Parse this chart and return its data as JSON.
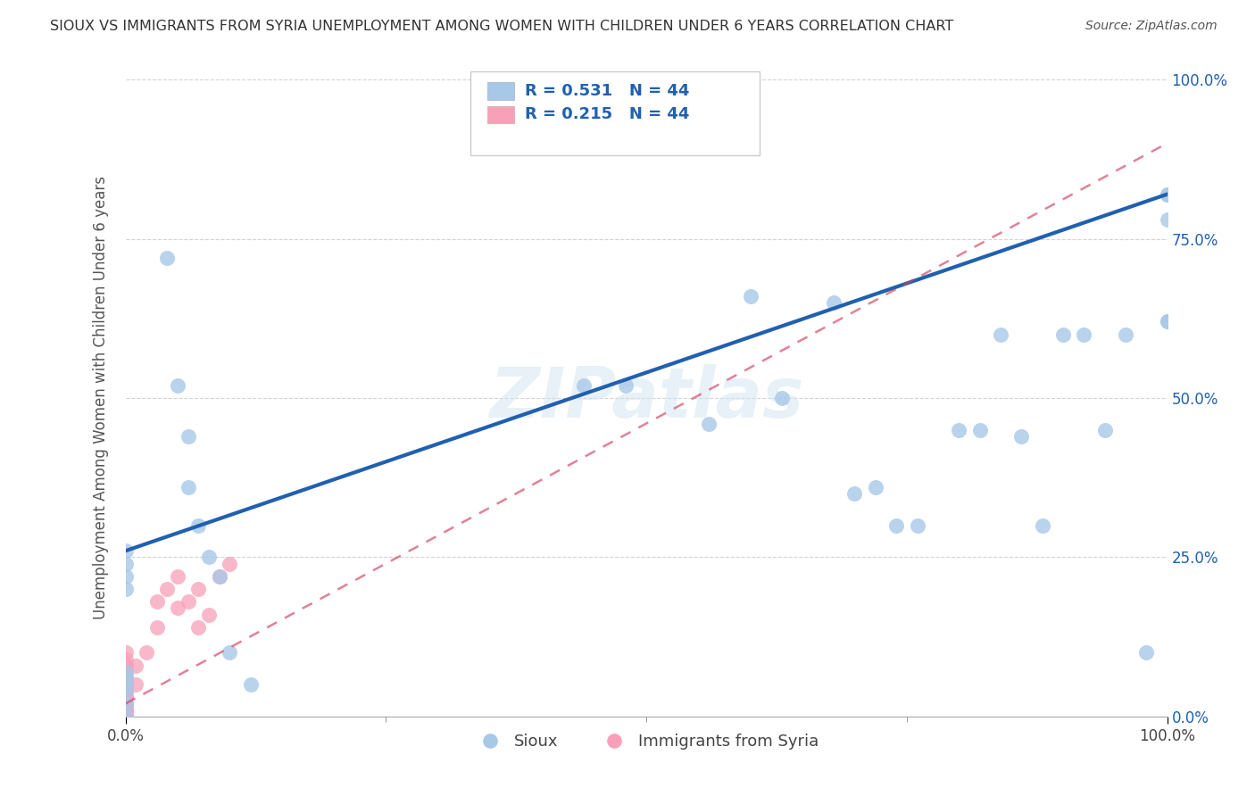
{
  "title": "SIOUX VS IMMIGRANTS FROM SYRIA UNEMPLOYMENT AMONG WOMEN WITH CHILDREN UNDER 6 YEARS CORRELATION CHART",
  "source": "Source: ZipAtlas.com",
  "ylabel": "Unemployment Among Women with Children Under 6 years",
  "sioux_R": 0.531,
  "sioux_N": 44,
  "syria_R": 0.215,
  "syria_N": 44,
  "legend_sioux": "Sioux",
  "legend_syria": "Immigrants from Syria",
  "sioux_color": "#a8c8e8",
  "sioux_line_color": "#2060b0",
  "syria_color": "#f8a0b8",
  "syria_line_color": "#d04060",
  "sioux_x": [
    0.0,
    0.0,
    0.0,
    0.0,
    0.0,
    0.0,
    0.0,
    0.0,
    0.0,
    0.0,
    0.04,
    0.05,
    0.06,
    0.06,
    0.07,
    0.08,
    0.09,
    0.1,
    0.12,
    0.44,
    0.48,
    0.56,
    0.6,
    0.63,
    0.68,
    0.7,
    0.72,
    0.74,
    0.76,
    0.8,
    0.82,
    0.84,
    0.86,
    0.88,
    0.9,
    0.92,
    0.94,
    0.96,
    0.98,
    1.0,
    1.0,
    1.0,
    1.0,
    1.0
  ],
  "sioux_y": [
    0.0,
    0.02,
    0.04,
    0.05,
    0.06,
    0.07,
    0.2,
    0.22,
    0.24,
    0.26,
    0.72,
    0.52,
    0.44,
    0.36,
    0.3,
    0.25,
    0.22,
    0.1,
    0.05,
    0.52,
    0.52,
    0.46,
    0.66,
    0.5,
    0.65,
    0.35,
    0.36,
    0.3,
    0.3,
    0.45,
    0.45,
    0.6,
    0.44,
    0.3,
    0.6,
    0.6,
    0.45,
    0.6,
    0.1,
    0.82,
    0.82,
    0.78,
    0.62,
    0.62
  ],
  "syria_x": [
    0.0,
    0.0,
    0.0,
    0.0,
    0.0,
    0.0,
    0.0,
    0.0,
    0.0,
    0.0,
    0.0,
    0.0,
    0.0,
    0.0,
    0.0,
    0.0,
    0.0,
    0.0,
    0.0,
    0.0,
    0.0,
    0.0,
    0.0,
    0.0,
    0.0,
    0.0,
    0.0,
    0.0,
    0.0,
    0.0,
    0.01,
    0.01,
    0.02,
    0.03,
    0.03,
    0.04,
    0.05,
    0.05,
    0.06,
    0.07,
    0.07,
    0.08,
    0.09,
    0.1
  ],
  "syria_y": [
    0.0,
    0.0,
    0.0,
    0.0,
    0.0,
    0.01,
    0.01,
    0.01,
    0.02,
    0.02,
    0.02,
    0.02,
    0.03,
    0.03,
    0.03,
    0.04,
    0.04,
    0.04,
    0.05,
    0.05,
    0.05,
    0.06,
    0.06,
    0.06,
    0.07,
    0.07,
    0.08,
    0.08,
    0.09,
    0.1,
    0.05,
    0.08,
    0.1,
    0.14,
    0.18,
    0.2,
    0.17,
    0.22,
    0.18,
    0.2,
    0.14,
    0.16,
    0.22,
    0.24
  ],
  "sioux_line_x0": 0.0,
  "sioux_line_y0": 0.26,
  "sioux_line_x1": 1.0,
  "sioux_line_y1": 0.82,
  "syria_line_x0": 0.0,
  "syria_line_y0": 0.02,
  "syria_line_x1": 1.0,
  "syria_line_y1": 0.9,
  "ylim": [
    0,
    1.0
  ],
  "xlim": [
    0,
    1.0
  ],
  "yticks": [
    0.0,
    0.25,
    0.5,
    0.75,
    1.0
  ],
  "ytick_labels": [
    "0.0%",
    "25.0%",
    "50.0%",
    "75.0%",
    "100.0%"
  ],
  "background_color": "#ffffff",
  "grid_color": "#c8c8c8",
  "title_color": "#333333"
}
